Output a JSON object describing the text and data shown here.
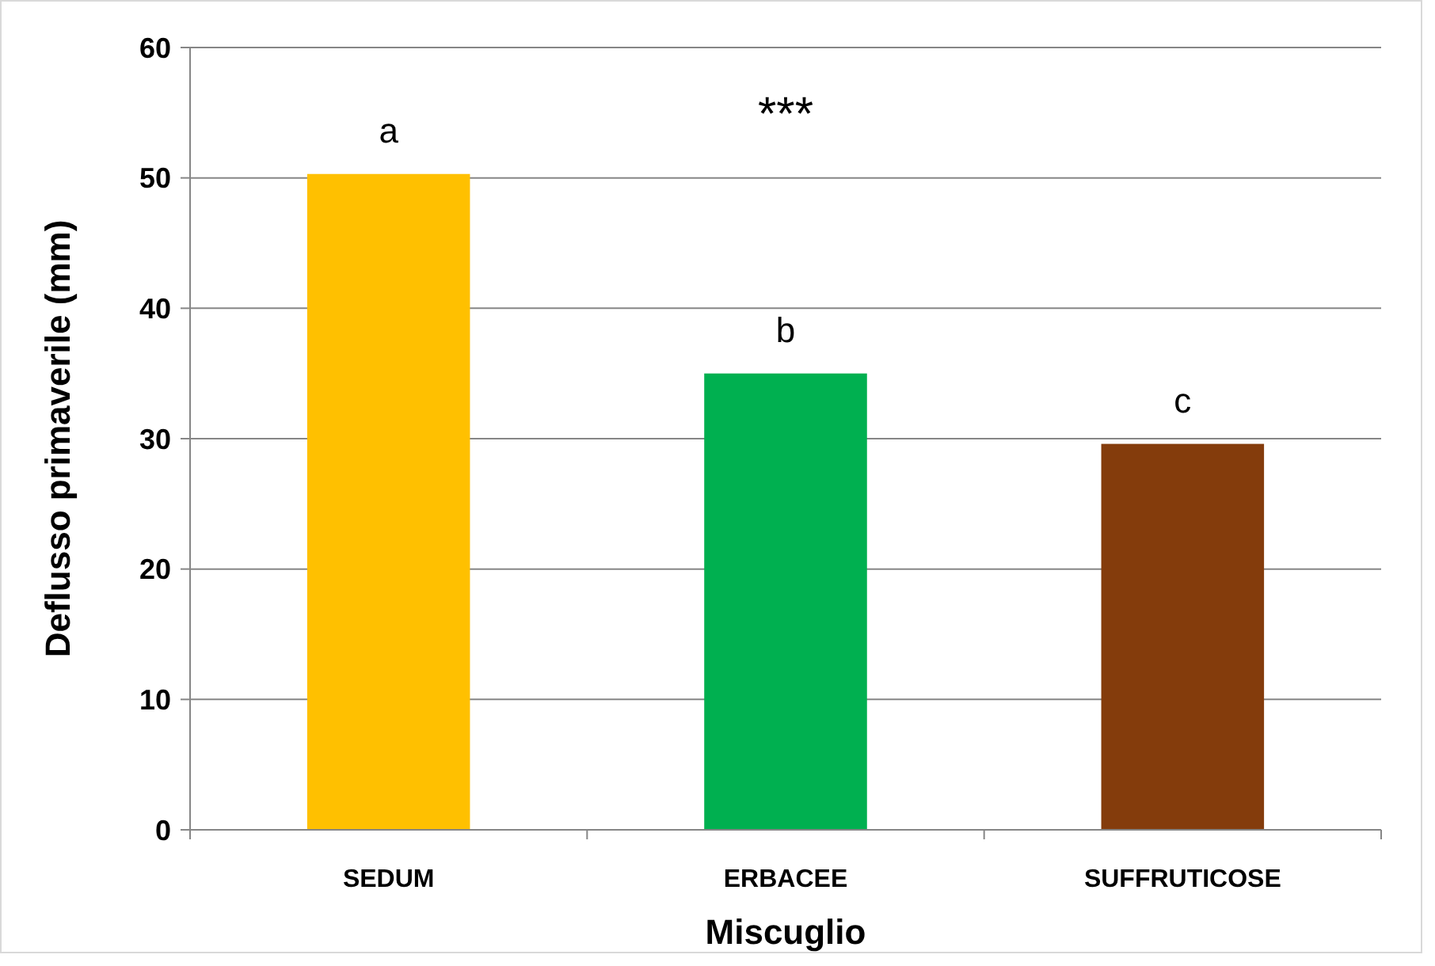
{
  "chart_data": {
    "type": "bar",
    "xlabel": "Miscuglio",
    "ylabel": "Deflusso primaverile (mm)",
    "categories": [
      "SEDUM",
      "ERBACEE",
      "SUFFRUTICOSE"
    ],
    "values": [
      50.3,
      35.0,
      29.6
    ],
    "colors": [
      "#ffc000",
      "#00b050",
      "#843c0c"
    ],
    "ylim": [
      0,
      60
    ],
    "yticks": [
      0,
      10,
      20,
      30,
      40,
      50,
      60
    ],
    "grid": "y",
    "annotations": [
      "a",
      "b",
      "c",
      "***"
    ]
  }
}
